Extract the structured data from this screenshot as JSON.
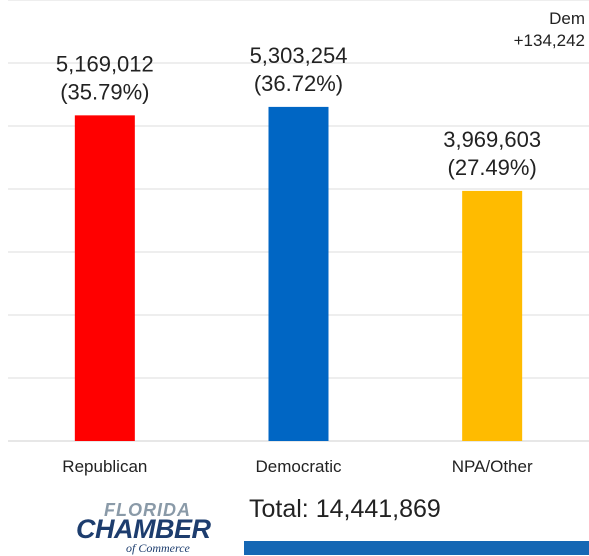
{
  "chart_data": {
    "type": "bar",
    "categories": [
      "Republican",
      "Democratic",
      "NPA/Other"
    ],
    "values": [
      5169012,
      5303254,
      3969603
    ],
    "value_labels": [
      "5,169,012",
      "5,303,254",
      "3,969,603"
    ],
    "percent_labels": [
      "(35.79%)",
      "(36.72%)",
      "(27.49%)"
    ],
    "colors": [
      "#ff0000",
      "#0066c4",
      "#ffbb00"
    ],
    "ylim": [
      0,
      7000000
    ],
    "grid": true,
    "legend": "none"
  },
  "annotation": {
    "line1": "Dem",
    "line2": "+134,242"
  },
  "total_label": "Total: 14,441,869",
  "logo": {
    "line1": "FLORIDA",
    "line2": "CHAMBER",
    "line3": "of Commerce"
  }
}
